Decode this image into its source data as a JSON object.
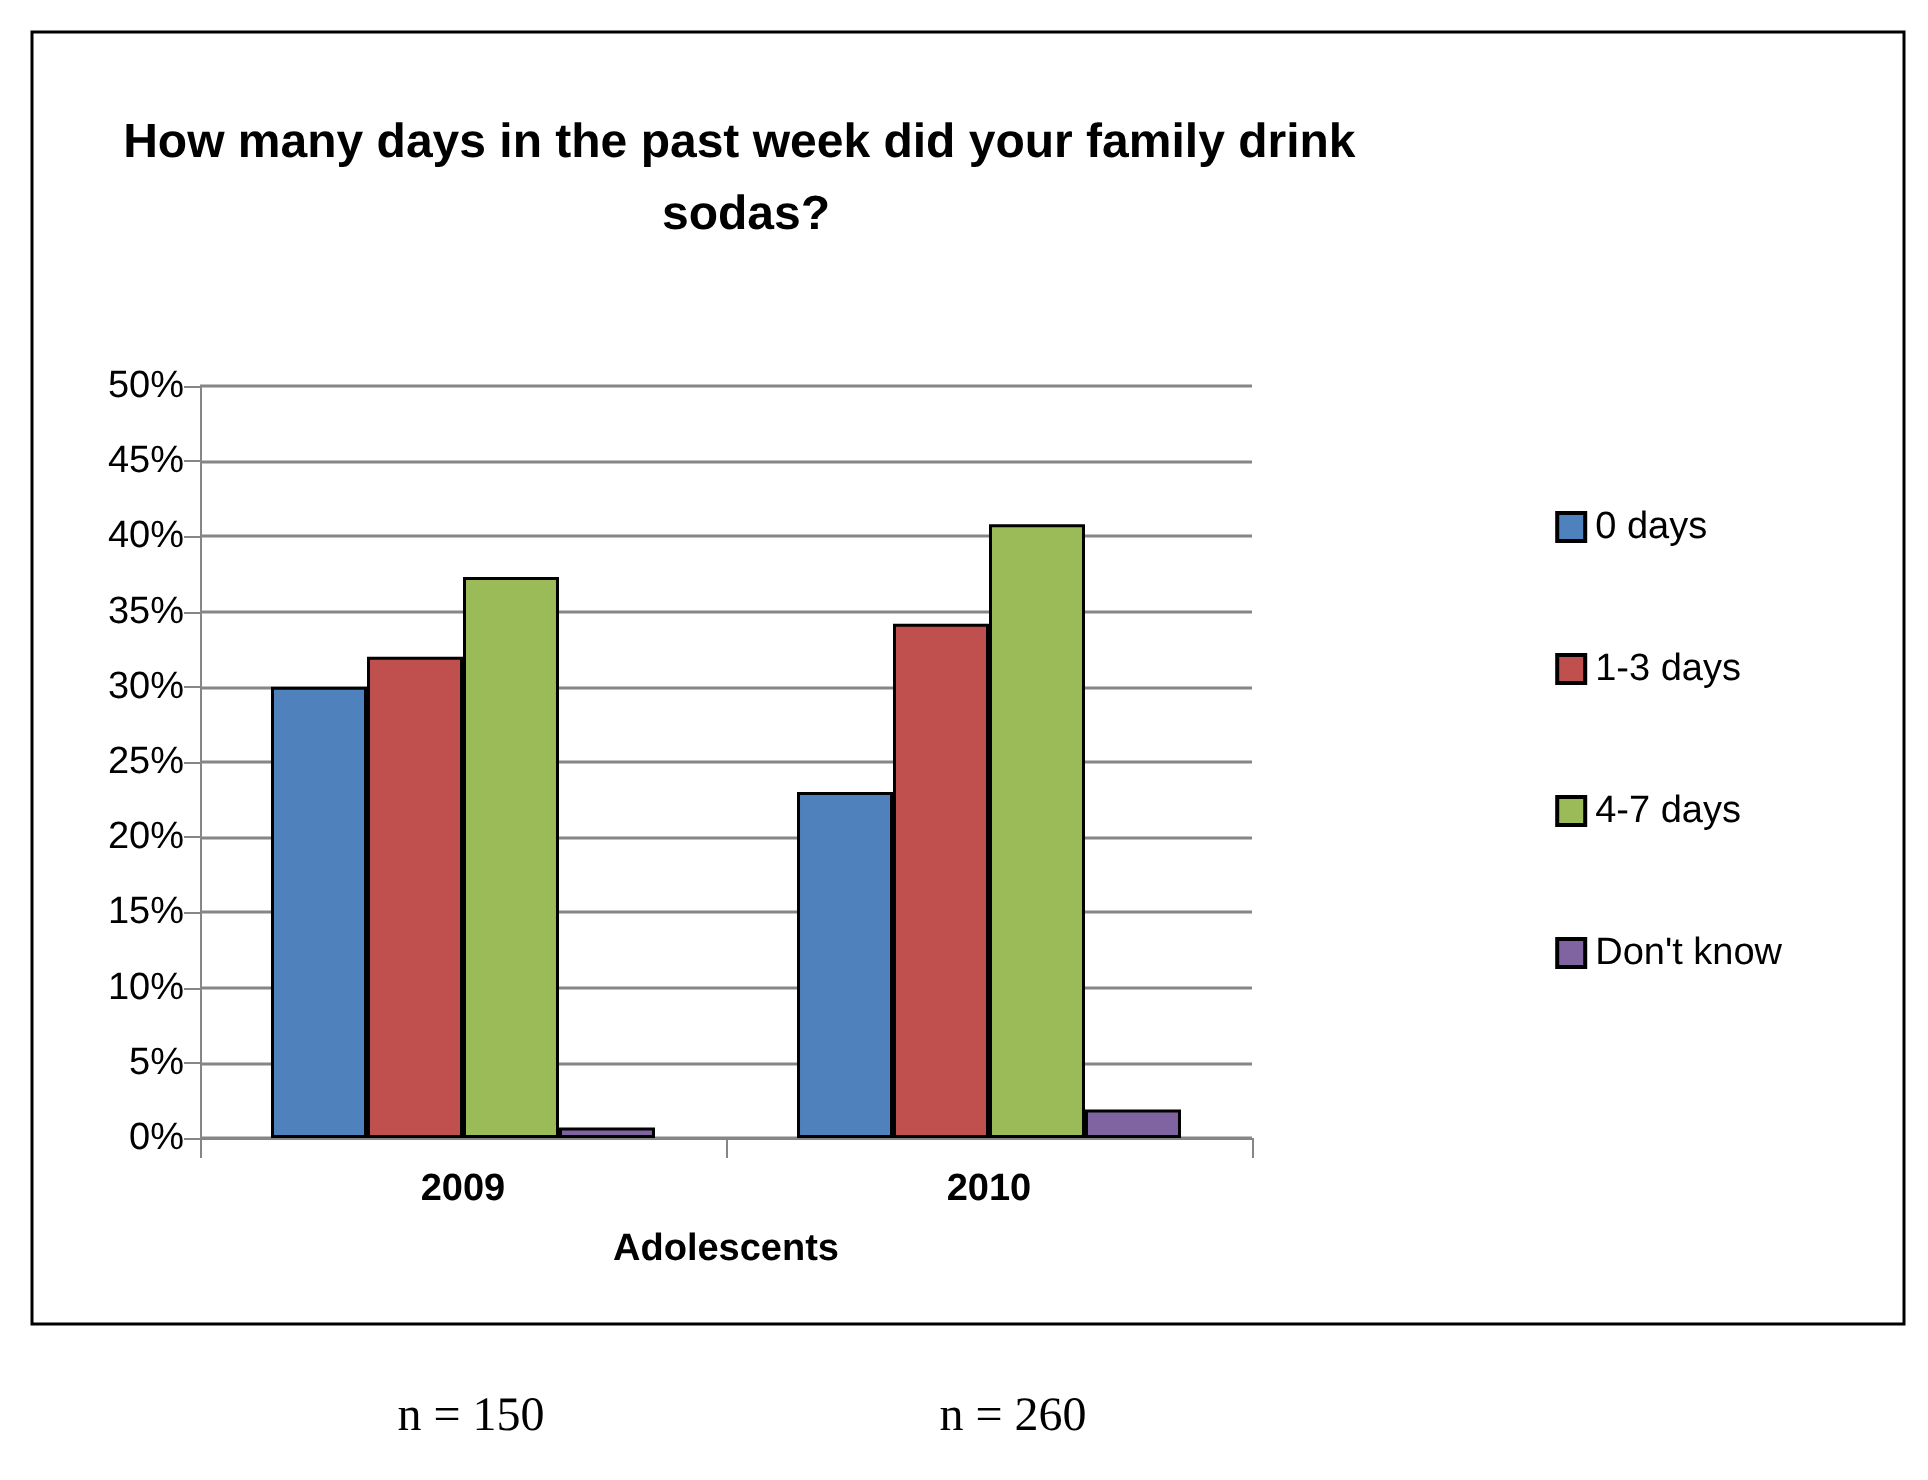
{
  "chart_data": {
    "type": "bar",
    "title": "How many days in the past week did your family drink sodas?",
    "xlabel": "Adolescents",
    "categories": [
      "2009",
      "2010"
    ],
    "series": [
      {
        "name": "0 days",
        "color": "#4f81bd",
        "values": [
          30.0,
          23.0
        ]
      },
      {
        "name": "1-3 days",
        "color": "#c0504d",
        "values": [
          32.0,
          34.2
        ]
      },
      {
        "name": "4-7 days",
        "color": "#9bbb59",
        "values": [
          37.3,
          40.8
        ]
      },
      {
        "name": "Don't know",
        "color": "#8064a2",
        "values": [
          0.7,
          1.9
        ]
      }
    ],
    "ylim": [
      0,
      50
    ],
    "yticks": [
      {
        "value": 0,
        "label": "0%"
      },
      {
        "value": 5,
        "label": "5%"
      },
      {
        "value": 10,
        "label": "10%"
      },
      {
        "value": 15,
        "label": "15%"
      },
      {
        "value": 20,
        "label": "20%"
      },
      {
        "value": 25,
        "label": "25%"
      },
      {
        "value": 30,
        "label": "30%"
      },
      {
        "value": 35,
        "label": "35%"
      },
      {
        "value": 40,
        "label": "40%"
      },
      {
        "value": 45,
        "label": "45%"
      },
      {
        "value": 50,
        "label": "50%"
      }
    ],
    "grid": "y",
    "legend": "right",
    "annotations": [
      "n = 150",
      "n = 260"
    ]
  }
}
